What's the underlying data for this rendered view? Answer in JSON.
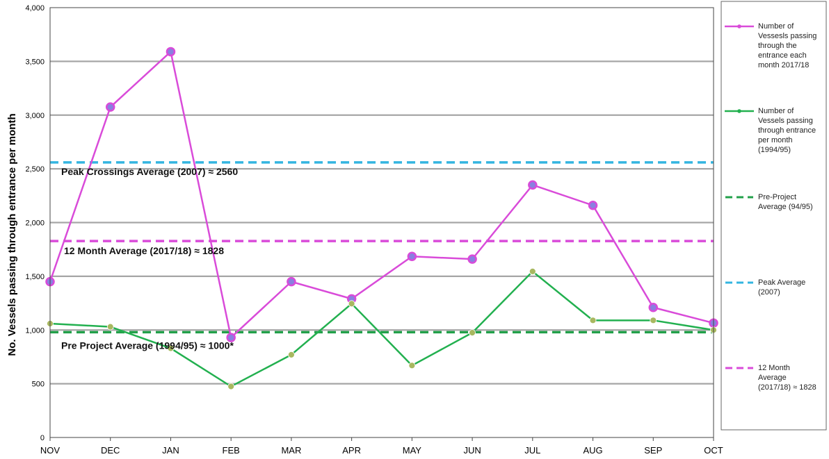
{
  "chart_data": {
    "type": "line",
    "title": "",
    "xlabel": "",
    "ylabel": "No. Vessels passing through entrance per month",
    "categories": [
      "NOV",
      "DEC",
      "JAN",
      "FEB",
      "MAR",
      "APR",
      "MAY",
      "JUN",
      "JUL",
      "AUG",
      "SEP",
      "OCT"
    ],
    "ylim": [
      0,
      4000
    ],
    "yticks": [
      0,
      500,
      1000,
      1500,
      2000,
      2500,
      3000,
      3500,
      4000
    ],
    "ytick_labels": [
      "0",
      "500",
      "1,000",
      "1,500",
      "2,000",
      "2,500",
      "3,000",
      "3,500",
      "4,000"
    ],
    "grid": "horizontal",
    "legend_position": "right",
    "series": [
      {
        "name": "Number of Vessesls passing through the entrance each month 2017/18",
        "color": "#d94bd9",
        "marker_color": "#8a7fe0",
        "values": [
          1450,
          3075,
          3590,
          930,
          1450,
          1290,
          1685,
          1660,
          2350,
          2160,
          1210,
          1065
        ]
      },
      {
        "name": "Number of Vessels passing through entrance per month (1994/95)",
        "color": "#22b04f",
        "marker_color": "#a8b860",
        "values": [
          1060,
          1030,
          830,
          475,
          770,
          1245,
          670,
          975,
          1545,
          1090,
          1090,
          1000
        ]
      }
    ],
    "reference_lines": [
      {
        "name": "Pre-Project Average (94/95)",
        "value": 980,
        "color": "#22a04a",
        "label": "Pre Project Average (1994/95) ≈ 1000*"
      },
      {
        "name": "Peak Average (2007)",
        "value": 2560,
        "color": "#33b5e0",
        "label": "Peak Crossings Average (2007) ≈ 2560"
      },
      {
        "name": "12 Month Average (2017/18) ≈ 1828",
        "value": 1828,
        "color": "#d94bd9",
        "label": "12 Month Average (2017/18) ≈ 1828"
      }
    ]
  },
  "legend": {
    "items": [
      {
        "key": "s0",
        "style": "line-marker",
        "color": "#d94bd9",
        "lines": [
          "Number of",
          "Vessesls passing",
          "through the",
          "entrance each",
          "month 2017/18"
        ]
      },
      {
        "key": "s1",
        "style": "line-marker",
        "color": "#22b04f",
        "lines": [
          "Number of",
          "Vessels passing",
          "through entrance",
          "per month",
          "(1994/95)"
        ]
      },
      {
        "key": "r0",
        "style": "dashed",
        "color": "#22a04a",
        "lines": [
          "Pre-Project",
          "Average (94/95)"
        ]
      },
      {
        "key": "r1",
        "style": "dashed",
        "color": "#33b5e0",
        "lines": [
          "Peak Average",
          "(2007)"
        ]
      },
      {
        "key": "r2",
        "style": "dashed",
        "color": "#d94bd9",
        "lines": [
          "12 Month",
          "Average",
          "(2017/18)  ≈ 1828"
        ]
      }
    ]
  }
}
